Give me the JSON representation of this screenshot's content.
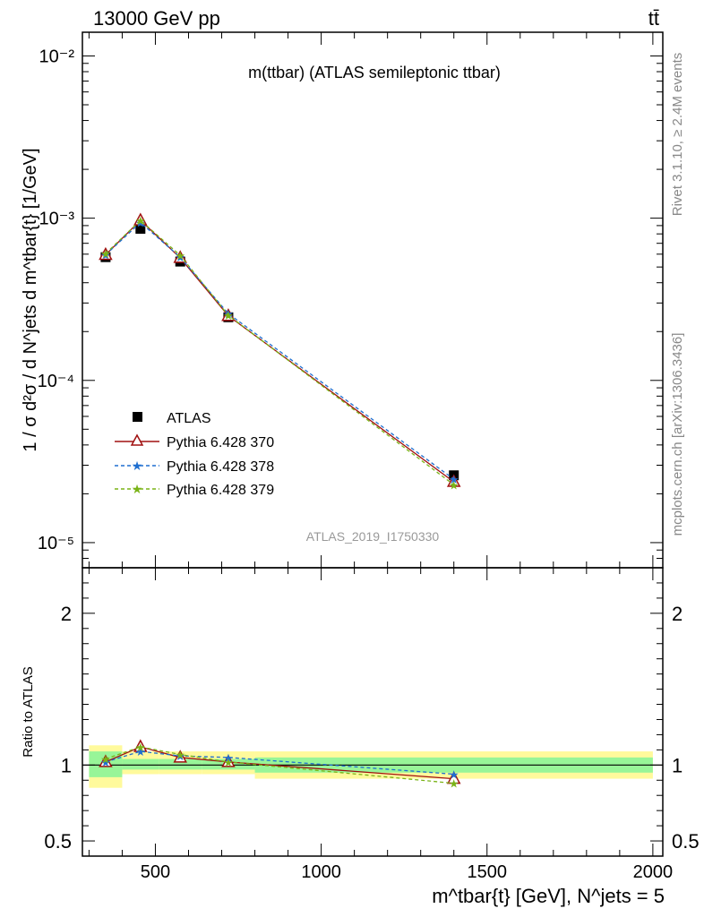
{
  "header": {
    "energy_label": "13000 GeV pp",
    "process_label": "tt̄"
  },
  "side_labels": {
    "rivet": "Rivet 3.1.10, ≥ 2.4M events",
    "mcplots": "mcplots.cern.ch [arXiv:1306.3436]"
  },
  "chart_data": [
    {
      "type": "line",
      "title": "m(ttbar) (ATLAS semileptonic ttbar)",
      "analysis_id": "ATLAS_2019_I1750330",
      "ylabel": "1 / σ d²σ / d N^jets d m^tbar{t} [1/GeV]",
      "yscale": "log",
      "xlim": [
        280,
        2030
      ],
      "ylim": [
        7e-06,
        0.014
      ],
      "y_ticks": [
        {
          "v": 1e-05,
          "label": "10⁻⁵"
        },
        {
          "v": 0.0001,
          "label": "10⁻⁴"
        },
        {
          "v": 0.001,
          "label": "10⁻³"
        },
        {
          "v": 0.01,
          "label": "10⁻²"
        }
      ],
      "x": [
        350,
        455,
        575,
        720,
        1400
      ],
      "series": [
        {
          "name": "ATLAS",
          "color": "#000000",
          "marker": "square",
          "values": [
            0.000575,
            0.00086,
            0.00054,
            0.000245,
            2.6e-05
          ]
        },
        {
          "name": "Pythia 6.428 370",
          "color": "#a01010",
          "marker": "triangle",
          "values": [
            0.000595,
            0.00097,
            0.00057,
            0.00025,
            2.37e-05
          ]
        },
        {
          "name": "Pythia 6.428 378",
          "color": "#1f6fd0",
          "marker": "star",
          "values": [
            0.000595,
            0.00094,
            0.000575,
            0.000258,
            2.46e-05
          ]
        },
        {
          "name": "Pythia 6.428 379",
          "color": "#7ab317",
          "marker": "star",
          "values": [
            0.000605,
            0.00097,
            0.00059,
            0.000252,
            2.27e-05
          ]
        }
      ]
    },
    {
      "type": "line",
      "ylabel": "Ratio to ATLAS",
      "xlabel": "m^tbar{t} [GeV], N^jets = 5",
      "xlim": [
        280,
        2030
      ],
      "ylim": [
        0.4,
        2.3
      ],
      "y_ticks": [
        {
          "v": 0.5,
          "label": "0.5"
        },
        {
          "v": 1,
          "label": "1"
        },
        {
          "v": 2,
          "label": "2"
        }
      ],
      "x_ticks": [
        {
          "v": 500,
          "label": "500"
        },
        {
          "v": 1000,
          "label": "1000"
        },
        {
          "v": 1500,
          "label": "1500"
        },
        {
          "v": 2000,
          "label": "2000"
        }
      ],
      "bins": [
        [
          300,
          400
        ],
        [
          400,
          510
        ],
        [
          510,
          640
        ],
        [
          640,
          800
        ],
        [
          800,
          2000
        ]
      ],
      "bands": {
        "stat": {
          "color": "#98f598",
          "lo": [
            0.92,
            0.97,
            0.97,
            0.97,
            0.95
          ],
          "hi": [
            1.09,
            1.04,
            1.04,
            1.04,
            1.05
          ]
        },
        "total": {
          "color": "#fffa9c",
          "lo": [
            0.85,
            0.94,
            0.94,
            0.94,
            0.91
          ],
          "hi": [
            1.13,
            1.09,
            1.09,
            1.09,
            1.09
          ]
        }
      },
      "x": [
        350,
        455,
        575,
        720,
        1400
      ],
      "series": [
        {
          "name": "Pythia 6.428 370",
          "color": "#a01010",
          "marker": "triangle",
          "values": [
            1.02,
            1.12,
            1.05,
            1.02,
            0.91
          ]
        },
        {
          "name": "Pythia 6.428 378",
          "color": "#1f6fd0",
          "marker": "star",
          "values": [
            1.02,
            1.09,
            1.06,
            1.05,
            0.94
          ]
        },
        {
          "name": "Pythia 6.428 379",
          "color": "#7ab317",
          "marker": "star",
          "values": [
            1.04,
            1.12,
            1.07,
            1.02,
            0.88
          ]
        }
      ]
    }
  ]
}
